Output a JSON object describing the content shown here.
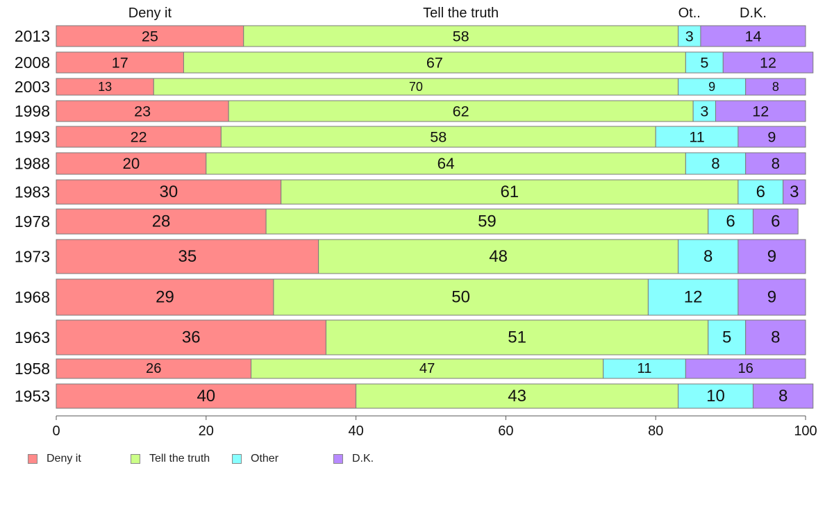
{
  "chart_data": {
    "type": "bar",
    "orientation": "horizontal",
    "stacked": true,
    "categories": [
      "2013",
      "2008",
      "2003",
      "1998",
      "1993",
      "1988",
      "1983",
      "1978",
      "1973",
      "1968",
      "1963",
      "1958",
      "1953"
    ],
    "series": [
      {
        "name": "Deny it",
        "color": "#ff8a8a",
        "values": [
          25,
          17,
          13,
          23,
          22,
          20,
          30,
          28,
          35,
          29,
          36,
          26,
          40
        ]
      },
      {
        "name": "Tell the truth",
        "color": "#ccff88",
        "values": [
          58,
          67,
          70,
          62,
          58,
          64,
          61,
          59,
          48,
          50,
          51,
          47,
          43
        ]
      },
      {
        "name": "Other",
        "color": "#88ffff",
        "values": [
          3,
          5,
          9,
          3,
          11,
          8,
          6,
          6,
          8,
          12,
          5,
          11,
          10
        ]
      },
      {
        "name": "D.K.",
        "color": "#b88aff",
        "values": [
          14,
          12,
          8,
          12,
          9,
          8,
          3,
          6,
          9,
          9,
          8,
          16,
          8
        ]
      }
    ],
    "top_labels": [
      "Deny it",
      "Tell the truth",
      "Ot..",
      "D.K."
    ],
    "xticks": [
      0,
      20,
      40,
      60,
      80,
      100
    ],
    "xlim": [
      0,
      100
    ],
    "legend_position": "bottom"
  },
  "legend": [
    {
      "label": "Deny it",
      "color": "#ff8a8a"
    },
    {
      "label": "Tell the truth",
      "color": "#ccff88"
    },
    {
      "label": "Other",
      "color": "#88ffff"
    },
    {
      "label": "D.K.",
      "color": "#b88aff"
    }
  ]
}
